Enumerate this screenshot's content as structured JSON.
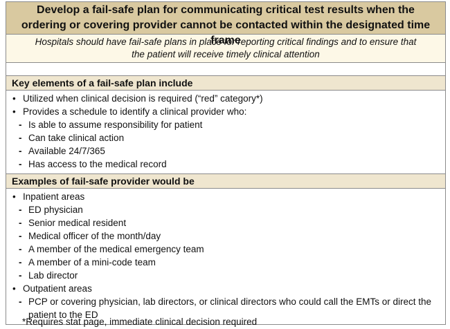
{
  "header": {
    "title": "Develop a fail-safe plan for communicating critical test results when the ordering or covering provider cannot be contacted within the designated time frame",
    "subtitle": "Hospitals should have fail-safe plans in place for reporting critical findings and to ensure that the patient will receive timely clinical attention"
  },
  "sections": [
    {
      "heading": "Key elements of a fail-safe plan include",
      "items": [
        {
          "text": "Utilized when clinical decision is required (“red” category*)",
          "subitems": []
        },
        {
          "text": "Provides a schedule to identify a clinical provider who:",
          "subitems": [
            "Is able to assume responsibility for patient",
            "Can take clinical action",
            "Available 24/7/365",
            "Has access to the medical record"
          ]
        }
      ]
    },
    {
      "heading": "Examples of fail-safe provider would be",
      "items": [
        {
          "text": "Inpatient areas",
          "subitems": [
            "ED physician",
            "Senior medical resident",
            "Medical officer of the month/day",
            "A member of the medical emergency team",
            "A member of a mini-code team",
            "Lab director"
          ]
        },
        {
          "text": "Outpatient areas",
          "subitems": [
            "PCP or covering physician, lab directors, or clinical directors who could call the EMTs or direct the patient to the ED"
          ]
        }
      ]
    }
  ],
  "footnote": "*Requires stat page, immediate clinical decision required"
}
